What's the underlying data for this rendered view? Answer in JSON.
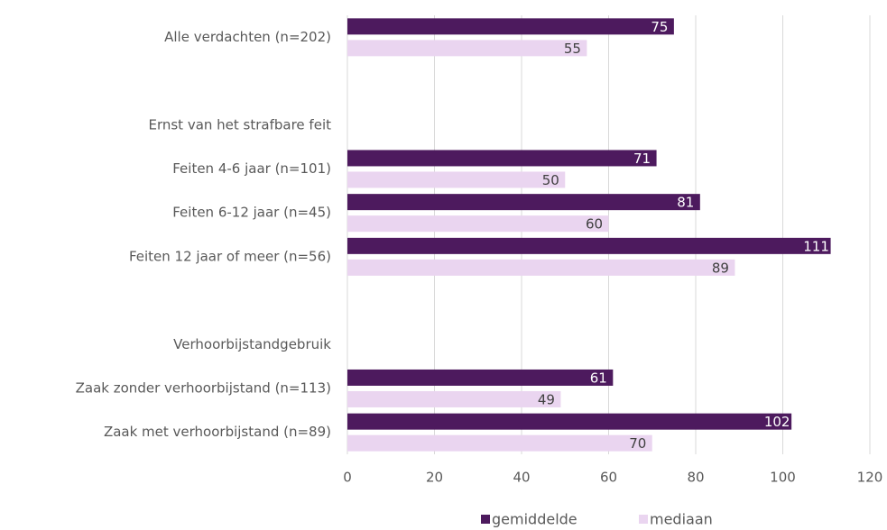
{
  "chart_data": {
    "type": "bar",
    "orientation": "horizontal",
    "categories": [
      "Alle verdachten (n=202)",
      null,
      "Ernst van het strafbare feit",
      "Feiten 4-6 jaar (n=101)",
      "Feiten 6-12 jaar (n=45)",
      "Feiten 12 jaar of meer (n=56)",
      null,
      "Verhoorbijstandgebruik",
      "Zaak zonder verhoorbijstand (n=113)",
      "Zaak met verhoorbijstand (n=89)"
    ],
    "series": [
      {
        "name": "gemiddelde",
        "color": "#4d1a5e",
        "values": [
          75,
          null,
          null,
          71,
          81,
          111,
          null,
          null,
          61,
          102
        ]
      },
      {
        "name": "mediaan",
        "color": "#ead5f0",
        "values": [
          55,
          null,
          null,
          50,
          60,
          89,
          null,
          null,
          49,
          70
        ]
      }
    ],
    "xlim": [
      0,
      120
    ],
    "xticks": [
      0,
      20,
      40,
      60,
      80,
      100,
      120
    ],
    "grid": true,
    "legend": "bottom"
  }
}
